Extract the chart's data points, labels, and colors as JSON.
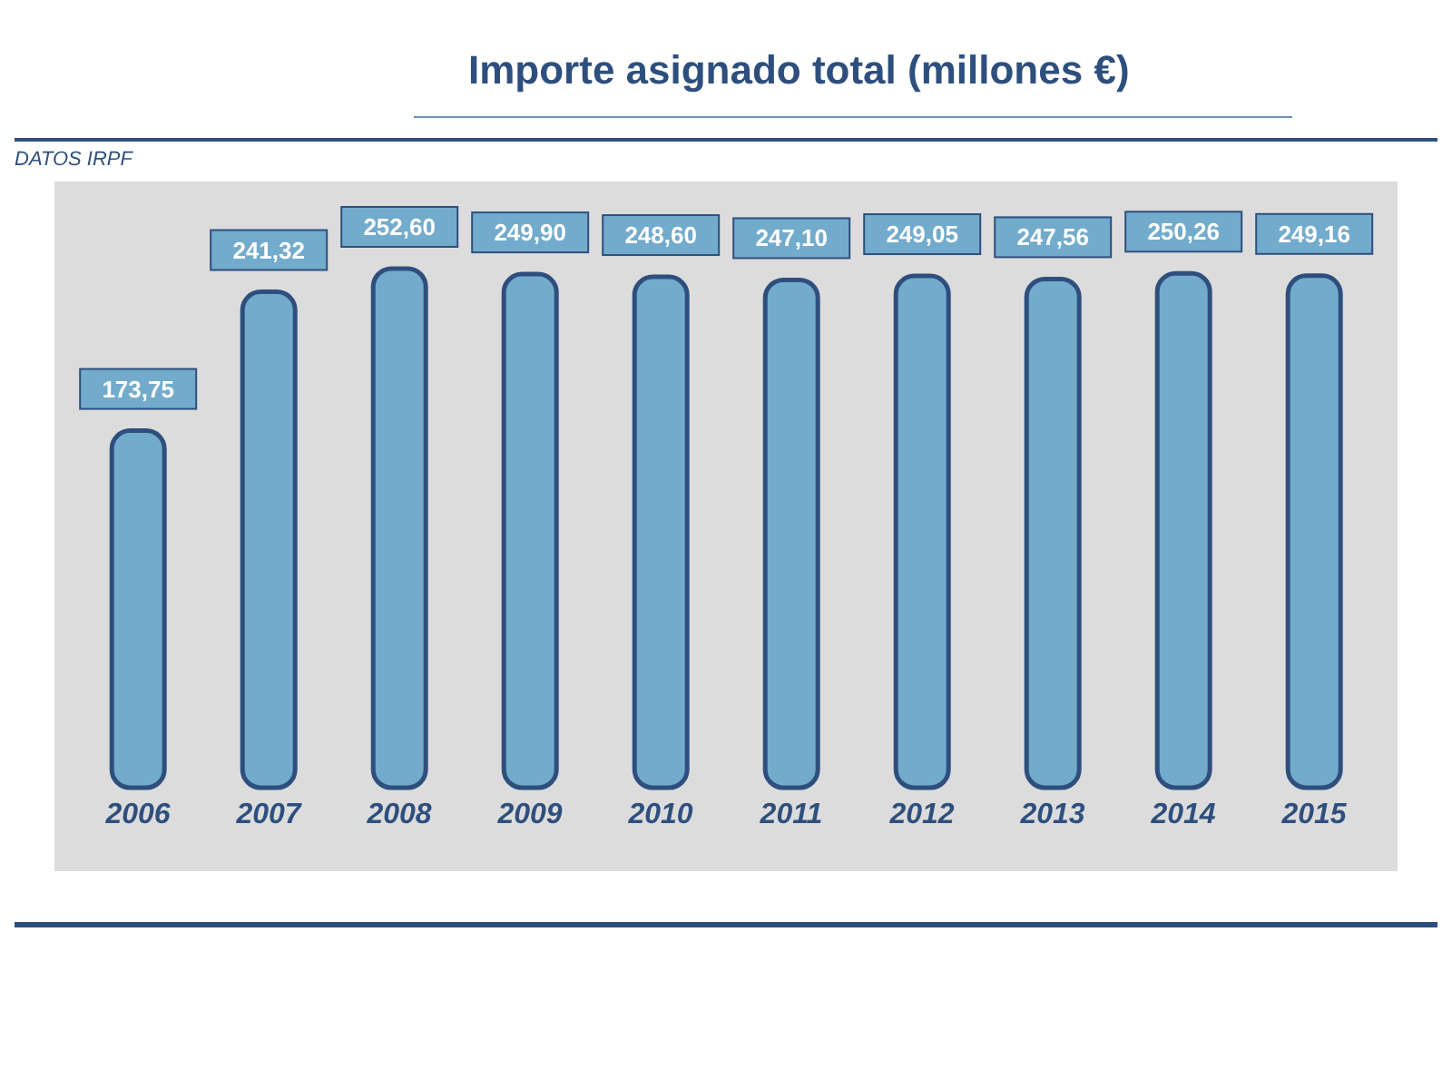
{
  "chart_data": {
    "type": "bar",
    "title": "Importe asignado total (millones €)",
    "annotations": [
      "DATOS IRPF"
    ],
    "categories": [
      "2006",
      "2007",
      "2008",
      "2009",
      "2010",
      "2011",
      "2012",
      "2013",
      "2014",
      "2015"
    ],
    "values": [
      173.75,
      241.32,
      252.6,
      249.9,
      248.6,
      247.1,
      249.05,
      247.56,
      250.26,
      249.16
    ],
    "value_labels": [
      "173,75",
      "241,32",
      "252,60",
      "249,90",
      "248,60",
      "247,10",
      "249,05",
      "247,56",
      "250,26",
      "249,16"
    ],
    "color": "#72abcc"
  }
}
